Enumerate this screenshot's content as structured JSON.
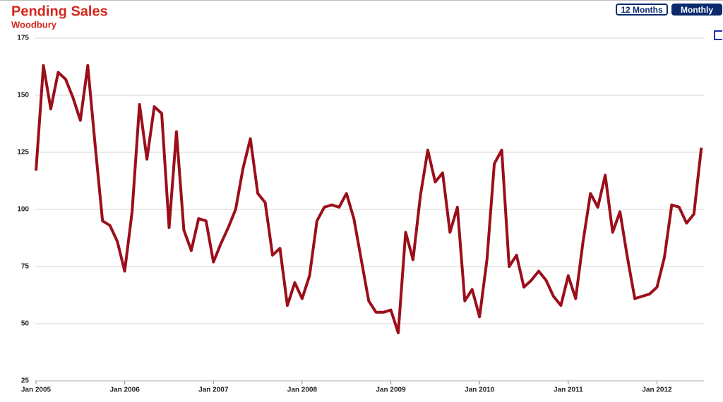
{
  "chart_data": {
    "type": "line",
    "title": "Pending Sales",
    "subtitle": "Woodbury",
    "buttons": [
      "12 Months",
      "Monthly"
    ],
    "categories": [
      "Jan 2005",
      null,
      null,
      null,
      null,
      null,
      null,
      null,
      null,
      null,
      null,
      null,
      "Jan 2006",
      null,
      null,
      null,
      null,
      null,
      null,
      null,
      null,
      null,
      null,
      null,
      "Jan 2007",
      null,
      null,
      null,
      null,
      null,
      null,
      null,
      null,
      null,
      null,
      null,
      "Jan 2008",
      null,
      null,
      null,
      null,
      null,
      null,
      null,
      null,
      null,
      null,
      null,
      "Jan 2009",
      null,
      null,
      null,
      null,
      null,
      null,
      null,
      null,
      null,
      null,
      null,
      "Jan 2010",
      null,
      null,
      null,
      null,
      null,
      null,
      null,
      null,
      null,
      null,
      null,
      "Jan 2011",
      null,
      null,
      null,
      null,
      null,
      null,
      null,
      null,
      null,
      null,
      null,
      "Jan 2012",
      null,
      null,
      null,
      null,
      null,
      null
    ],
    "values": [
      117,
      163,
      144,
      160,
      157,
      149,
      139,
      163,
      128,
      95,
      93,
      86,
      73,
      99,
      146,
      122,
      145,
      142,
      92,
      134,
      91,
      82,
      96,
      95,
      77,
      85,
      92,
      100,
      118,
      131,
      107,
      103,
      80,
      83,
      58,
      68,
      61,
      71,
      95,
      101,
      102,
      101,
      107,
      96,
      78,
      60,
      55,
      55,
      56,
      46,
      90,
      78,
      106,
      126,
      112,
      116,
      90,
      101,
      60,
      65,
      53,
      78,
      120,
      126,
      75,
      80,
      66,
      69,
      73,
      69,
      62,
      58,
      71,
      61,
      86,
      107,
      101,
      115,
      90,
      99,
      79,
      61,
      62,
      63,
      66,
      79,
      102,
      101,
      94,
      98,
      127
    ],
    "color": "#9b0f1a",
    "ylim": [
      25,
      175
    ],
    "yticks": [
      25,
      50,
      75,
      100,
      125,
      150,
      175
    ],
    "grid": true
  }
}
